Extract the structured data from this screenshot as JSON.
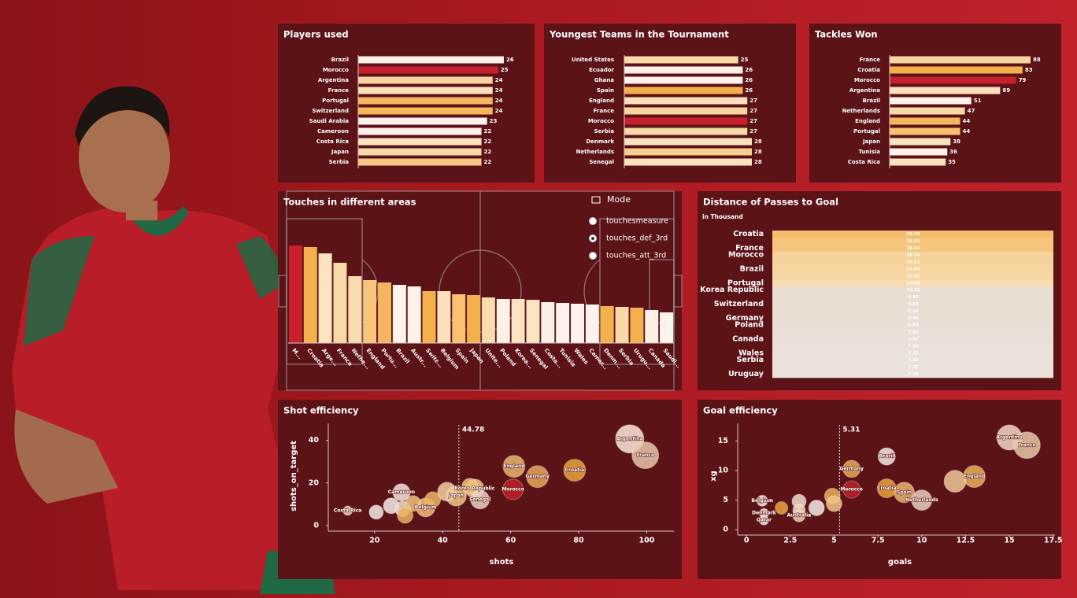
{
  "chart_data": [
    {
      "type": "hbar",
      "title": "Players used",
      "categories": [
        "Brazil",
        "Morocco",
        "Argentina",
        "France",
        "Portugal",
        "Switzerland",
        "Saudi Arabia",
        "Cameroon",
        "Costa Rica",
        "Japan",
        "Serbia"
      ],
      "values": [
        26,
        25,
        24,
        24,
        24,
        24,
        23,
        22,
        22,
        22,
        22
      ],
      "colors": [
        "#fdf0e6",
        "#c8202c",
        "#f7d4a0",
        "#fbe1b8",
        "#f5b460",
        "#f8b65a",
        "#fdf3ec",
        "#fdf1e8",
        "#fbe3c0",
        "#f8d9a8",
        "#f7c786"
      ]
    },
    {
      "type": "hbar",
      "title": "Youngest Teams in the Tournament",
      "categories": [
        "United States",
        "Ecuador",
        "Ghana",
        "Spain",
        "England",
        "France",
        "Morocco",
        "Serbia",
        "Denmark",
        "Netherlands",
        "Senegal"
      ],
      "values": [
        25,
        26,
        26,
        26,
        27,
        27,
        27,
        27,
        28,
        28,
        28
      ],
      "colors": [
        "#f8d9a8",
        "#fdf0e6",
        "#fdf3ec",
        "#f5b04e",
        "#fbe0bb",
        "#f8d5a0",
        "#c8202c",
        "#f8d9a8",
        "#fbe3c0",
        "#f7cf90",
        "#fbe3c0"
      ]
    },
    {
      "type": "hbar",
      "title": "Tackles Won",
      "categories": [
        "France",
        "Croatia",
        "Morocco",
        "Argentina",
        "Brazil",
        "Netherlands",
        "England",
        "Portugal",
        "Japan",
        "Tunisia",
        "Costa Rica"
      ],
      "values": [
        88,
        83,
        79,
        69,
        51,
        47,
        44,
        44,
        38,
        36,
        35
      ],
      "colors": [
        "#f7d4a0",
        "#f5b04e",
        "#c8202c",
        "#fbe0bb",
        "#fdf3ec",
        "#f8d9a8",
        "#f5b460",
        "#f8c16f",
        "#fbe3c0",
        "#fdf3ec",
        "#fbe3c0"
      ]
    },
    {
      "type": "bar",
      "title": "Touches in different areas",
      "categories": [
        "M...",
        "Croatia",
        "Arge...",
        "France",
        "Nethe...",
        "England",
        "Portu...",
        "Brazil",
        "Austr...",
        "Switz...",
        "Belgium",
        "Spain",
        "Japan",
        "Unite...",
        "Poland",
        "Korea...",
        "Senegal",
        "Costa...",
        "Tunisia",
        "Wales",
        "Camer...",
        "Denm...",
        "Serbia",
        "Urugu...",
        "Canada",
        "Saudi..."
      ],
      "values": [
        124,
        122,
        114,
        102,
        85,
        80,
        77,
        74,
        72,
        66,
        66,
        62,
        61,
        58,
        56,
        56,
        55,
        52,
        51,
        50,
        49,
        47,
        46,
        45,
        42,
        39
      ],
      "colors": [
        "#c8202c",
        "#f5b04e",
        "#fbe3c0",
        "#f7d9a8",
        "#f8dcb0",
        "#f7c47a",
        "#f5b460",
        "#fdf3ec",
        "#fdf1e8",
        "#f5b04e",
        "#fbe0bb",
        "#f8c16f",
        "#f5b04e",
        "#f8dcb0",
        "#fdf0e6",
        "#fbe3c0",
        "#fbe3c0",
        "#fdf0e6",
        "#fdf3ec",
        "#fdf3ec",
        "#fdf3ec",
        "#f5b04e",
        "#f9d9a6",
        "#f5b04e",
        "#fdf0e6",
        "#fdf3ec"
      ],
      "legend": {
        "title": "Mode",
        "options": [
          "touchesmeasure",
          "touches_def_3rd",
          "touches_att_3rd"
        ],
        "selected": 1
      }
    },
    {
      "type": "heatmap",
      "title": "Distance of Passes to Goal",
      "subtitle": "in Thousand",
      "categories": [
        "Croatia",
        null,
        "France",
        "Morocco",
        null,
        "Brazil",
        null,
        "Portugal",
        "Korea Republic",
        null,
        "Switzerland",
        null,
        "Germany",
        "Poland",
        null,
        "Canada",
        null,
        "Wales",
        "Serbia",
        null,
        "Uruguay"
      ],
      "values": [
        20.58,
        18.63,
        18.44,
        15.14,
        15.11,
        14.85,
        14.65,
        13.68,
        10.12,
        9.97,
        9.58,
        9.56,
        9.46,
        8.53,
        7.97,
        7.92,
        7.9,
        7.57,
        7.33,
        7.27,
        7.18
      ],
      "value_labels": [
        "20.58",
        "18.63",
        "18.44",
        "15.14",
        "15.11",
        "14.85",
        "14.65",
        "13.68",
        "10.12",
        "9.97",
        "9.58",
        "9.56",
        "9.46",
        "8.53",
        "7.97",
        "7.92",
        "7.90",
        "7.57",
        "7.33",
        "7.27",
        "7.18"
      ],
      "colors": [
        "#f4bd6c",
        "#f5c57c",
        "#f5c67f",
        "#f6d39c",
        "#f6d39d",
        "#f6d5a1",
        "#f6d6a4",
        "#f7dcaf",
        "#e9ddd0",
        "#e9ddd1",
        "#e9ded2",
        "#e9ded2",
        "#e9ded3",
        "#eadfd5",
        "#eae0d7",
        "#eae0d7",
        "#eae0d7",
        "#eae1d8",
        "#eae1d9",
        "#eae1d9",
        "#eae2da"
      ]
    },
    {
      "type": "scatter",
      "title": "Shot efficiency",
      "x_label": "shots",
      "y_label": "shots_on_target",
      "names": [
        "Argentina",
        "France",
        "Croatia",
        "England",
        "Germany",
        "Morocco",
        "Korea Republic",
        "Senegal",
        "Japan",
        "Belgium",
        "Cameroon",
        "Costa Rica",
        null,
        null,
        null,
        null,
        null,
        null,
        null,
        null
      ],
      "x": [
        95,
        99.6,
        78.8,
        61,
        67.9,
        60.7,
        49.4,
        51,
        44,
        35,
        27.9,
        12.1,
        20.5,
        24.9,
        28.3,
        31.3,
        37.1,
        41.3,
        48,
        29
      ],
      "values": [
        40.7,
        33,
        26,
        27.8,
        23,
        17,
        17.4,
        12.2,
        14,
        8.5,
        15.6,
        7,
        6.3,
        9.3,
        7.8,
        10.4,
        12.2,
        15.9,
        18.5,
        4.8
      ],
      "sizes": [
        18,
        17,
        14,
        14,
        14,
        13,
        12,
        12,
        13,
        12,
        11,
        6,
        9,
        10,
        10,
        10,
        10,
        12,
        10,
        10
      ],
      "colors": [
        "#fbe8dc",
        "#e8c7a8",
        "#e9a43c",
        "#eab56e",
        "#e7a85a",
        "#c0202a",
        "#f1c98c",
        "#e8d3c4",
        "#f0c584",
        "#f2c07a",
        "#f3e4dc",
        "#e8d8cc",
        "#f5ebe6",
        "#f5ebe6",
        "#efdccb",
        "#ecc27a",
        "#eab564",
        "#f1cfa0",
        "#f0c07a",
        "#e9b25c"
      ],
      "xlim": [
        6.4,
        108
      ],
      "ylim": [
        -2.6,
        48
      ],
      "xticks": [
        20,
        40,
        60,
        80,
        100
      ],
      "yticks": [
        0,
        20,
        40
      ],
      "reference_line": {
        "value": 44.78
      }
    },
    {
      "type": "scatter",
      "title": "Goal efficiency",
      "x_label": "goals",
      "y_label": "xg",
      "names": [
        "Argentina",
        "France",
        "England",
        null,
        "Netherlands",
        "Spain",
        "Croatia",
        "Brazil",
        "Germany",
        "Morocco",
        "Belgium",
        "Denmark",
        "Qatar",
        "Australia",
        null,
        null,
        null,
        null,
        null,
        null
      ],
      "x": [
        15,
        16,
        13,
        11.9,
        10,
        9,
        8,
        8,
        6,
        6,
        0.9,
        1,
        1,
        3,
        2,
        3,
        4,
        4.9,
        5,
        3
      ],
      "values": [
        15.6,
        14.3,
        9,
        8.2,
        5,
        6.3,
        7,
        12.4,
        10.3,
        6.8,
        4.9,
        2.8,
        1.6,
        2.4,
        3.7,
        4.8,
        3.7,
        5.7,
        4.4,
        3.3
      ],
      "sizes": [
        16,
        17,
        14,
        14,
        13,
        13,
        12,
        11,
        11,
        11,
        7,
        6,
        6,
        8,
        8,
        9,
        10,
        10,
        10,
        8
      ],
      "colors": [
        "#f3d7c8",
        "#e8c7a8",
        "#e9b25c",
        "#eec89a",
        "#e6cfc0",
        "#eab56e",
        "#e9a43c",
        "#f5ebe6",
        "#e7a85a",
        "#c0202a",
        "#f5ebe6",
        "#f5ebe6",
        "#f5ebe6",
        "#efd2b8",
        "#e9a43c",
        "#efdccb",
        "#f5ebe6",
        "#e9b25c",
        "#f0c584",
        "#eed8c6"
      ],
      "xlim": [
        -0.5,
        17.6
      ],
      "ylim": [
        -0.9,
        18
      ],
      "xticks": [
        0,
        2.5,
        5,
        7.5,
        10,
        12.5,
        15,
        17.5
      ],
      "yticks": [
        0,
        5,
        10,
        15
      ],
      "reference_line": {
        "value": 5.31
      }
    }
  ]
}
